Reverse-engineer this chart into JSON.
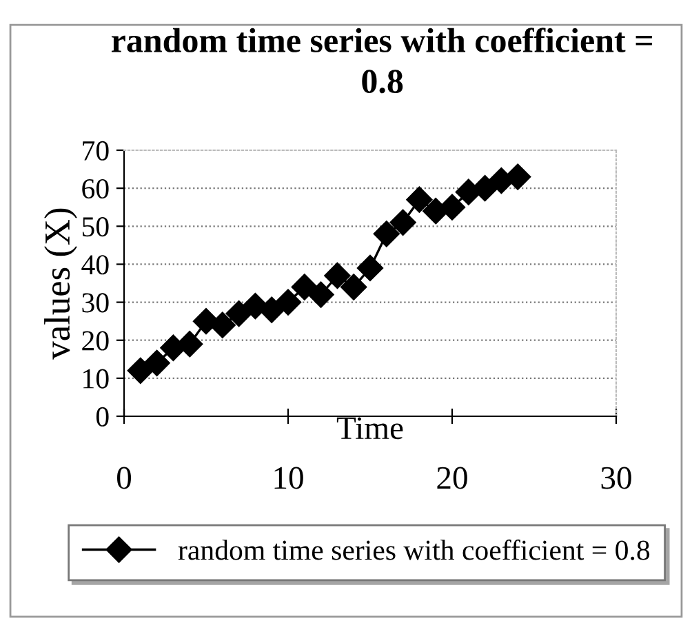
{
  "chart_data": {
    "type": "line",
    "title": "random time series with coefficient = 0.8",
    "xlabel": "Time",
    "ylabel": "values (X)",
    "x": [
      1,
      2,
      3,
      4,
      5,
      6,
      7,
      8,
      9,
      10,
      11,
      12,
      13,
      14,
      15,
      16,
      17,
      18,
      19,
      20,
      21,
      22,
      23,
      24
    ],
    "series": [
      {
        "name": "random time series with coefficient = 0.8",
        "color": "#000000",
        "values": [
          12,
          14,
          18,
          19,
          25,
          24,
          27,
          29,
          28,
          30,
          34,
          32,
          37,
          34,
          39,
          48,
          51,
          57,
          54,
          55,
          59,
          60,
          62,
          63
        ]
      }
    ],
    "xlim": [
      0,
      30
    ],
    "xticks": [
      0,
      10,
      20,
      30
    ],
    "ylim": [
      0,
      70
    ],
    "yticks": [
      0,
      10,
      20,
      30,
      40,
      50,
      60,
      70
    ],
    "grid": "y",
    "legend": "bottom",
    "marker": "diamond",
    "line_style": "solid"
  }
}
